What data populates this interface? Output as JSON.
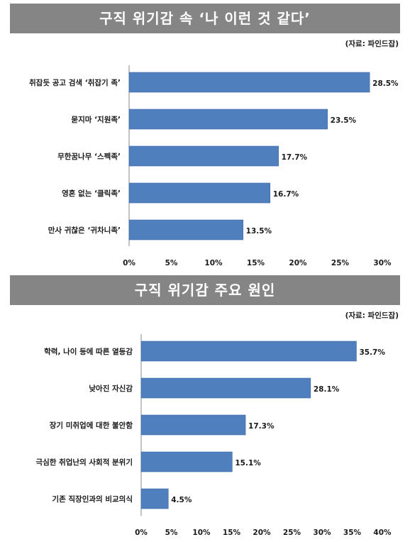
{
  "charts": [
    {
      "banner": "구직 위기감 속 ‘나 이런 것 같다’",
      "source": "(자료: 파인드잡)"
    },
    {
      "banner": "구직 위기감 주요 원인",
      "source": "(자료: 파인드잡)"
    }
  ],
  "colors": {
    "bar": "#4f7fbd",
    "bar_edge": "#3d6aa3",
    "banner_bg": "#858585",
    "banner_text": "#ffffff"
  },
  "chart_data": [
    {
      "type": "bar",
      "orientation": "horizontal",
      "title": "구직 위기감 속 ‘나 이런 것 같다’",
      "categories": [
        "취잡듯 공고 검색 ‘취잡기 족’",
        "묻지마 ‘지원족’",
        "무한꿈나무 ‘스펙족’",
        "영혼 없는 ‘클릭족’",
        "만사 귀찮은 ‘귀차니족’"
      ],
      "values": [
        28.5,
        23.5,
        17.7,
        16.7,
        13.5
      ],
      "value_labels": [
        "28.5%",
        "23.5%",
        "17.7%",
        "16.7%",
        "13.5%"
      ],
      "xlim": [
        0,
        30
      ],
      "xticks": [
        0,
        5,
        10,
        15,
        20,
        25,
        30
      ],
      "xtick_labels": [
        "0%",
        "5%",
        "10%",
        "15%",
        "20%",
        "25%",
        "30%"
      ],
      "grid": false,
      "legend": "none"
    },
    {
      "type": "bar",
      "orientation": "horizontal",
      "title": "구직 위기감 주요 원인",
      "categories": [
        "학력, 나이 등에 따른 열등감",
        "낮아진 자신감",
        "장기 미취업에 대한 불안함",
        "극심한 취업난의 사회적 분위기",
        "기존 직장인과의 비교의식"
      ],
      "values": [
        35.7,
        28.1,
        17.3,
        15.1,
        4.5
      ],
      "value_labels": [
        "35.7%",
        "28.1%",
        "17.3%",
        "15.1%",
        "4.5%"
      ],
      "xlim": [
        0,
        40
      ],
      "xticks": [
        0,
        5,
        10,
        15,
        20,
        25,
        30,
        35,
        40
      ],
      "xtick_labels": [
        "0%",
        "5%",
        "10%",
        "15%",
        "20%",
        "25%",
        "30%",
        "35%",
        "40%"
      ],
      "grid": false,
      "legend": "none"
    }
  ]
}
